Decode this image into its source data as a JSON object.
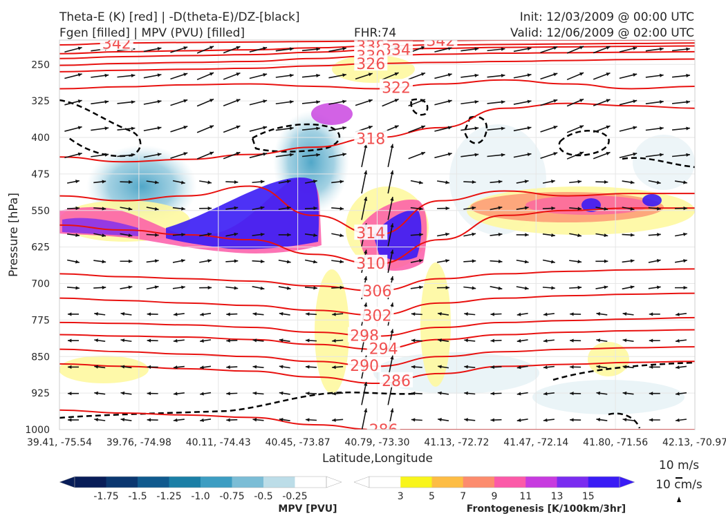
{
  "header": {
    "title_line1": "Theta-E (K) [red] | -D(theta-E)/DZ-[black]",
    "title_line2": "Fgen [filled] | MPV (PVU) [filled]",
    "fhr": "FHR:74",
    "init": "Init: 12/03/2009 @ 00:00 UTC",
    "valid": "Valid: 12/06/2009 @ 02:00 UTC"
  },
  "chart_data": {
    "type": "cross-section",
    "xlabel": "Latitude,Longitude",
    "ylabel": "Pressure [hPa]",
    "y_scale": "pressure, increasing downward",
    "ylim": [
      1000,
      200
    ],
    "y_ticks": [
      250,
      325,
      400,
      475,
      550,
      625,
      700,
      775,
      850,
      925,
      1000
    ],
    "x_ticks": [
      "39.41, -75.54",
      "39.76, -74.98",
      "40.11, -74.43",
      "40.45, -73.87",
      "40.79, -73.30",
      "41.13, -72.72",
      "41.47, -72.14",
      "41.80, -71.56",
      "42.13, -70.97"
    ],
    "grid": true,
    "theta_e_contours": [
      {
        "label": "342",
        "p": [
          210,
          206,
          205,
          204,
          203,
          202,
          201,
          200,
          200,
          200,
          200
        ],
        "labels_at": [
          0.09,
          0.6
        ]
      },
      {
        "label": "338",
        "p": [
          228,
          224,
          222,
          220,
          216,
          212,
          210,
          209,
          208,
          207,
          206
        ],
        "labels_at": [
          0.49
        ]
      },
      {
        "label": "334",
        "p": [
          238,
          234,
          232,
          230,
          225,
          220,
          217,
          215,
          214,
          213,
          212
        ],
        "labels_at": [
          0.53
        ]
      },
      {
        "label": "330",
        "p": [
          252,
          248,
          246,
          244,
          238,
          232,
          229,
          227,
          226,
          225,
          224
        ],
        "labels_at": [
          0.49
        ]
      },
      {
        "label": "326",
        "p": [
          265,
          262,
          260,
          258,
          253,
          248,
          246,
          244,
          242,
          240,
          239
        ],
        "labels_at": [
          0.49
        ]
      },
      {
        "label": "322",
        "p": [
          300,
          296,
          292,
          290,
          295,
          300,
          290,
          282,
          290,
          300,
          295
        ],
        "labels_at": [
          0.53
        ]
      },
      {
        "label": "318",
        "p": [
          440,
          450,
          445,
          435,
          420,
          400,
          380,
          340,
          330,
          335,
          340
        ],
        "labels_at": [
          0.49
        ]
      },
      {
        "label": "314",
        "p": [
          520,
          530,
          520,
          500,
          560,
          600,
          530,
          510,
          520,
          515,
          515
        ],
        "labels_at": [
          0.49
        ]
      },
      {
        "label": "310",
        "p": [
          580,
          590,
          600,
          610,
          640,
          660,
          610,
          560,
          550,
          545,
          545
        ],
        "labels_at": [
          0.49
        ]
      },
      {
        "label": "306",
        "p": [
          680,
          686,
          690,
          695,
          705,
          715,
          690,
          680,
          675,
          672,
          670
        ],
        "labels_at": [
          0.5
        ]
      },
      {
        "label": "302",
        "p": [
          730,
          735,
          740,
          745,
          755,
          765,
          740,
          730,
          725,
          722,
          720
        ],
        "labels_at": [
          0.5
        ]
      },
      {
        "label": "298",
        "p": [
          780,
          782,
          785,
          790,
          800,
          808,
          790,
          780,
          776,
          773,
          770
        ],
        "labels_at": [
          0.48
        ]
      },
      {
        "label": "294",
        "p": [
          805,
          808,
          810,
          815,
          825,
          835,
          815,
          805,
          800,
          797,
          795
        ],
        "labels_at": [
          0.51
        ]
      },
      {
        "label": "290",
        "p": [
          835,
          840,
          845,
          850,
          860,
          870,
          850,
          840,
          835,
          832,
          830
        ],
        "labels_at": [
          0.48
        ]
      },
      {
        "label": "286",
        "p": [
          865,
          870,
          875,
          880,
          892,
          905,
          885,
          870,
          866,
          862,
          860
        ],
        "labels_at": [
          0.53
        ]
      },
      {
        "label": "286",
        "p": [
          960,
          966,
          970,
          975,
          990,
          1000,
          1000,
          1000,
          1000,
          1000,
          1000
        ],
        "labels_at": [
          0.51
        ]
      }
    ],
    "colorbars": [
      {
        "title": "MPV [PVU]",
        "levels": [
          "-1.75",
          "-1.5",
          "-1.25",
          "-1.0",
          "-0.75",
          "-0.5",
          "-0.25"
        ],
        "colors": [
          "#081d58",
          "#0b3770",
          "#105a8e",
          "#1b7fa6",
          "#3d9dc2",
          "#7bbdd6",
          "#bcdde8",
          "#ffffff"
        ]
      },
      {
        "title": "Frontogenesis [K/100km/3hr]",
        "levels": [
          "3",
          "5",
          "7",
          "9",
          "11",
          "13",
          "15"
        ],
        "colors": [
          "#ffffff",
          "#f8f51c",
          "#fdbd45",
          "#fc8c6e",
          "#fb5aa8",
          "#c73bdf",
          "#7a2cf0",
          "#3a1cf5"
        ]
      }
    ],
    "reference_vectors": {
      "horizontal": "10 m/s",
      "vertical": "10 cm/s"
    }
  }
}
